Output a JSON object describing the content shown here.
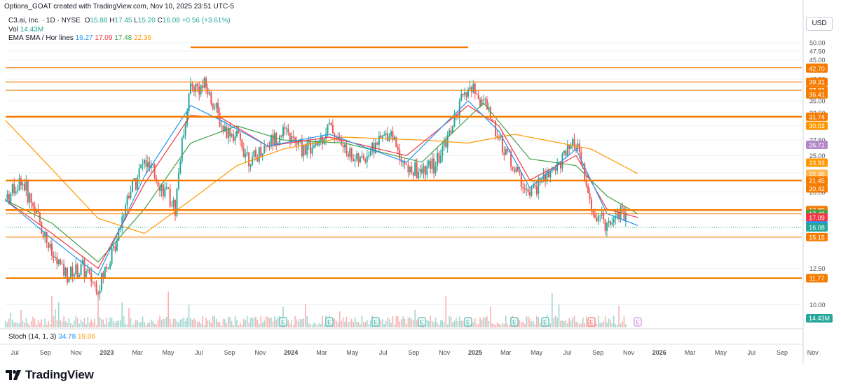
{
  "header": {
    "attribution": "Options_GOAT created with TradingView.com, Nov 10, 2025 23:51 UTC-5",
    "symbol_line": "C3.ai, Inc. · 1D · NYSE",
    "ohlc": {
      "o_label": "O",
      "o": "15.88",
      "h_label": "H",
      "h": "17.45",
      "l_label": "L",
      "l": "15.20",
      "c_label": "C",
      "c": "16.08",
      "change": "+0.56 (+3.61%)"
    },
    "vol_label": "Vol",
    "vol_value": "14.43M",
    "indicator_label": "EMA SMA / Hor lines",
    "indicator_values": [
      "16.27",
      "17.09",
      "17.48",
      "22.36"
    ],
    "currency": "USD",
    "stoch_label": "Stoch (14, 1, 3)",
    "stoch_values": [
      "34.78",
      "19.06"
    ]
  },
  "footer": {
    "brand": "TradingView"
  },
  "colors": {
    "up": "#26a69a",
    "down": "#ef5350",
    "ema_fast": "#2196f3",
    "ema_mid": "#f23645",
    "ema_slow": "#43a047",
    "sma_long": "#ff9800",
    "hline": "#f57c00",
    "grid": "#eef0f3",
    "text": "#131722"
  },
  "chart_data": {
    "type": "candlestick",
    "ylim": [
      9,
      52
    ],
    "price_ticks": [
      "10.00",
      "12.50",
      "15.00",
      "17.50",
      "20.00",
      "22.50",
      "25.00",
      "27.50",
      "30.00",
      "32.50",
      "35.00",
      "37.50",
      "40.00",
      "42.50",
      "45.00",
      "47.50",
      "50.00"
    ],
    "x_ticks": [
      "Jul",
      "Sep",
      "Nov",
      "2023",
      "Mar",
      "May",
      "Jul",
      "Sep",
      "Nov",
      "2024",
      "Mar",
      "May",
      "Jul",
      "Sep",
      "Nov",
      "2025",
      "Mar",
      "May",
      "Jul",
      "Sep",
      "Nov",
      "2026",
      "Mar",
      "May",
      "Jul",
      "Sep",
      "Nov"
    ],
    "x_ticks_bold": [
      "2023",
      "2024",
      "2025",
      "2026"
    ],
    "horizontal_lines": [
      {
        "price": 48.6,
        "from": "2023-06",
        "to": "2024-12",
        "weight": "thick"
      },
      {
        "price": 42.91,
        "weight": "thin"
      },
      {
        "price": 39.31,
        "weight": "thin"
      },
      {
        "price": 37.32,
        "weight": "thin"
      },
      {
        "price": 31.74,
        "weight": "thick"
      },
      {
        "price": 21.45,
        "weight": "thick"
      },
      {
        "price": 17.89,
        "weight": "thick"
      },
      {
        "price": 17.48,
        "weight": "thin"
      },
      {
        "price": 15.15,
        "weight": "thin"
      },
      {
        "price": 11.77,
        "weight": "thick"
      }
    ],
    "price_labels": [
      {
        "text": "42.91",
        "value": 42.91,
        "color": "#f57c00"
      },
      {
        "text": "42.70",
        "value": 42.7,
        "color": "#f57c00"
      },
      {
        "text": "39.31",
        "value": 39.31,
        "color": "#f57c00"
      },
      {
        "text": "37.32",
        "value": 37.32,
        "color": "#f57c00"
      },
      {
        "text": "36.41",
        "value": 36.41,
        "color": "#f57c00"
      },
      {
        "text": "31.74",
        "value": 31.74,
        "color": "#f57c00"
      },
      {
        "text": "30.03",
        "value": 30.03,
        "color": "#ff9800"
      },
      {
        "text": "26.71",
        "value": 26.71,
        "color": "#b388c9"
      },
      {
        "text": "23.93",
        "value": 23.93,
        "color": "#ff9800"
      },
      {
        "text": "22.36",
        "value": 22.36,
        "color": "#ffb74d"
      },
      {
        "text": "21.45",
        "value": 21.45,
        "color": "#f57c00"
      },
      {
        "text": "20.42",
        "value": 20.42,
        "color": "#f57c00"
      },
      {
        "text": "17.89",
        "value": 17.89,
        "color": "#f57c00"
      },
      {
        "text": "17.48",
        "value": 17.48,
        "color": "#43a047"
      },
      {
        "text": "17.09",
        "value": 17.09,
        "color": "#f23645"
      },
      {
        "text": "16.27",
        "value": 16.27,
        "color": "#2196f3"
      },
      {
        "text": "16.08",
        "value": 16.08,
        "color": "#26a69a"
      },
      {
        "text": "15.15",
        "value": 15.15,
        "color": "#f57c00"
      },
      {
        "text": "11.77",
        "value": 11.77,
        "color": "#f57c00"
      }
    ],
    "volume_label": {
      "text": "14.43M",
      "color": "#26a69a"
    },
    "earnings_markers": [
      {
        "label": "E",
        "date": "2023-12",
        "color": "#26a69a"
      },
      {
        "label": "E",
        "date": "2024-03",
        "color": "#26a69a"
      },
      {
        "label": "E",
        "date": "2024-06",
        "color": "#26a69a"
      },
      {
        "label": "E",
        "date": "2024-09",
        "color": "#26a69a"
      },
      {
        "label": "E",
        "date": "2024-12",
        "color": "#26a69a"
      },
      {
        "label": "E",
        "date": "2025-03",
        "color": "#26a69a"
      },
      {
        "label": "E",
        "date": "2025-05",
        "color": "#26a69a"
      },
      {
        "label": "E",
        "date": "2025-08",
        "color": "#ef5350"
      },
      {
        "label": "E",
        "date": "2025-11",
        "color": "#d17be6"
      }
    ],
    "price_path": [
      [
        "2022-06",
        19.0
      ],
      [
        "2022-07",
        21.5
      ],
      [
        "2022-08",
        17.5
      ],
      [
        "2022-09",
        13.5
      ],
      [
        "2022-10",
        12.0
      ],
      [
        "2022-11",
        12.5
      ],
      [
        "2022-12",
        11.0
      ],
      [
        "2023-01",
        14.0
      ],
      [
        "2023-02",
        20.0
      ],
      [
        "2023-03",
        24.0
      ],
      [
        "2023-04",
        21.0
      ],
      [
        "2023-05",
        18.0
      ],
      [
        "2023-06",
        38.0
      ],
      [
        "2023-07",
        38.0
      ],
      [
        "2023-08",
        30.0
      ],
      [
        "2023-09",
        28.0
      ],
      [
        "2023-10",
        24.0
      ],
      [
        "2023-11",
        27.0
      ],
      [
        "2023-12",
        29.0
      ],
      [
        "2024-01",
        26.5
      ],
      [
        "2024-02",
        26.0
      ],
      [
        "2024-03",
        30.0
      ],
      [
        "2024-04",
        26.0
      ],
      [
        "2024-05",
        24.0
      ],
      [
        "2024-06",
        27.0
      ],
      [
        "2024-07",
        29.0
      ],
      [
        "2024-08",
        23.0
      ],
      [
        "2024-09",
        22.5
      ],
      [
        "2024-10",
        24.0
      ],
      [
        "2024-11",
        30.0
      ],
      [
        "2024-12",
        38.0
      ],
      [
        "2025-01",
        35.0
      ],
      [
        "2025-02",
        28.0
      ],
      [
        "2025-03",
        23.0
      ],
      [
        "2025-04",
        19.5
      ],
      [
        "2025-05",
        22.0
      ],
      [
        "2025-06",
        24.0
      ],
      [
        "2025-07",
        27.0
      ],
      [
        "2025-08",
        17.5
      ],
      [
        "2025-09",
        16.5
      ],
      [
        "2025-10",
        18.0
      ],
      [
        "2025-11",
        16.08
      ]
    ],
    "ema_fast_path": [
      [
        "2022-06",
        19.0
      ],
      [
        "2022-09",
        15.0
      ],
      [
        "2022-12",
        12.0
      ],
      [
        "2023-03",
        22.0
      ],
      [
        "2023-06",
        34.0
      ],
      [
        "2023-08",
        31.0
      ],
      [
        "2023-11",
        26.5
      ],
      [
        "2024-03",
        28.5
      ],
      [
        "2024-08",
        24.0
      ],
      [
        "2024-12",
        35.0
      ],
      [
        "2025-02",
        29.0
      ],
      [
        "2025-04",
        20.5
      ],
      [
        "2025-07",
        26.0
      ],
      [
        "2025-09",
        17.5
      ],
      [
        "2025-11",
        16.27
      ]
    ],
    "ema_mid_path": [
      [
        "2022-06",
        19.0
      ],
      [
        "2022-09",
        15.5
      ],
      [
        "2022-12",
        12.5
      ],
      [
        "2023-03",
        21.0
      ],
      [
        "2023-06",
        32.0
      ],
      [
        "2023-08",
        31.5
      ],
      [
        "2023-11",
        26.5
      ],
      [
        "2024-03",
        28.0
      ],
      [
        "2024-08",
        25.0
      ],
      [
        "2024-12",
        34.0
      ],
      [
        "2025-02",
        30.0
      ],
      [
        "2025-04",
        21.5
      ],
      [
        "2025-07",
        25.0
      ],
      [
        "2025-09",
        18.0
      ],
      [
        "2025-11",
        17.09
      ]
    ],
    "ema_slow_path": [
      [
        "2022-06",
        19.0
      ],
      [
        "2022-09",
        16.5
      ],
      [
        "2022-12",
        13.0
      ],
      [
        "2023-03",
        18.0
      ],
      [
        "2023-06",
        27.0
      ],
      [
        "2023-09",
        30.0
      ],
      [
        "2023-12",
        27.5
      ],
      [
        "2024-04",
        27.0
      ],
      [
        "2024-09",
        24.0
      ],
      [
        "2025-01",
        34.5
      ],
      [
        "2025-04",
        24.5
      ],
      [
        "2025-07",
        23.5
      ],
      [
        "2025-09",
        19.5
      ],
      [
        "2025-11",
        17.48
      ]
    ],
    "sma_long_path": [
      [
        "2022-06",
        31.0
      ],
      [
        "2022-09",
        23.0
      ],
      [
        "2022-12",
        17.0
      ],
      [
        "2023-03",
        15.5
      ],
      [
        "2023-06",
        19.0
      ],
      [
        "2023-09",
        23.5
      ],
      [
        "2023-12",
        26.0
      ],
      [
        "2024-04",
        28.0
      ],
      [
        "2024-09",
        27.5
      ],
      [
        "2024-12",
        27.0
      ],
      [
        "2025-03",
        28.5
      ],
      [
        "2025-06",
        27.0
      ],
      [
        "2025-08",
        26.0
      ],
      [
        "2025-11",
        22.36
      ]
    ]
  }
}
